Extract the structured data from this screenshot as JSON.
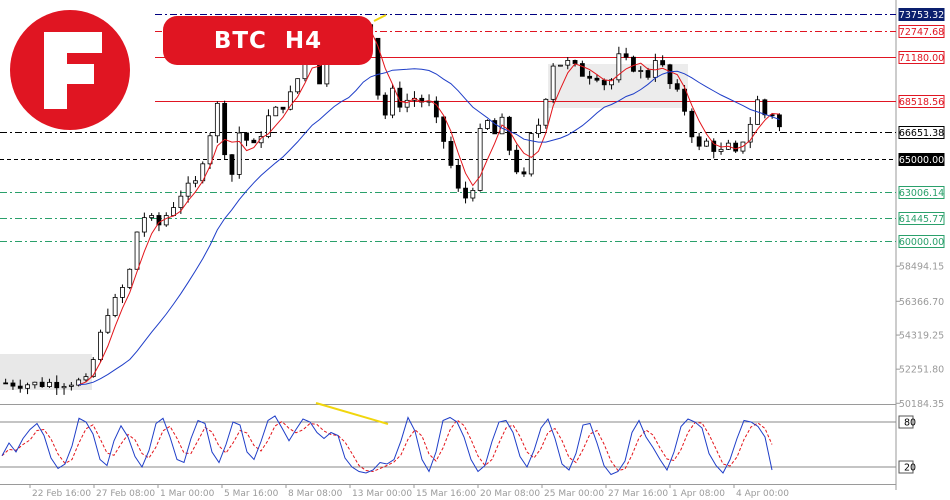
{
  "header": {
    "symbol": "BTC",
    "timeframe": "H4"
  },
  "colors": {
    "brand_red": "#e01522",
    "candle": "#000000",
    "ma_fast": "#e3151b",
    "ma_slow": "#1f3ec8",
    "resistance": "#e01522",
    "support": "#2aa06b",
    "stoch_main": "#1f3ec8",
    "stoch_signal": "#e3151b",
    "highlight": "#f1d60d"
  },
  "chart_data": [
    {
      "type": "candlestick",
      "title": "BTC H4",
      "x_tick_labels": [
        "22 Feb 16:00",
        "27 Feb 08:00",
        "1 Mar 00:00",
        "5 Mar 16:00",
        "8 Mar 08:00",
        "13 Mar 00:00",
        "15 Mar 16:00",
        "20 Mar 08:00",
        "25 Mar 00:00",
        "27 Mar 16:00",
        "1 Apr 08:00",
        "4 Apr 00:00"
      ],
      "y_range": [
        50140,
        74450
      ],
      "y_tick_labels": [
        58494.15,
        56366.7,
        54319.25,
        52251.8,
        50184.35
      ],
      "levels": [
        {
          "value": 73753.32,
          "label": "73753.32",
          "style": "dash-dot",
          "color": "#000080",
          "label_style": "navy"
        },
        {
          "value": 72747.68,
          "label": "72747.68",
          "style": "dash-dot",
          "color": "#e01522",
          "label_style": "red"
        },
        {
          "value": 71180.0,
          "label": "71180.00",
          "style": "solid",
          "color": "#e01522",
          "label_style": "red"
        },
        {
          "value": 68518.56,
          "label": "68518.56",
          "style": "solid",
          "color": "#e01522",
          "label_style": "red"
        },
        {
          "value": 66651.38,
          "label": "66651.38",
          "style": "dash-dot",
          "color": "#000000",
          "label_style": "plain"
        },
        {
          "value": 65000.0,
          "label": "65000.00",
          "style": "dashed",
          "color": "#000000",
          "label_style": "black"
        },
        {
          "value": 63006.14,
          "label": "63006.14",
          "style": "dash-dot",
          "color": "#2aa06b",
          "label_style": "green"
        },
        {
          "value": 61445.77,
          "label": "61445.77",
          "style": "dash-dot",
          "color": "#2aa06b",
          "label_style": "green"
        },
        {
          "value": 60000.0,
          "label": "60000.00",
          "style": "dash-dot",
          "color": "#2aa06b",
          "label_style": "green"
        }
      ],
      "price_path": [
        [
          0,
          51420
        ],
        [
          4,
          51350
        ],
        [
          9,
          51500
        ],
        [
          11,
          51460
        ],
        [
          12,
          52800
        ],
        [
          14,
          55800
        ],
        [
          15.5,
          56600
        ],
        [
          17,
          58200
        ],
        [
          18,
          60600
        ],
        [
          19,
          61500
        ],
        [
          21,
          61000
        ],
        [
          22.5,
          61900
        ],
        [
          24,
          62900
        ],
        [
          26,
          63500
        ],
        [
          27.5,
          65800
        ],
        [
          29,
          68200
        ],
        [
          30,
          65600
        ],
        [
          31,
          64100
        ],
        [
          32,
          66600
        ],
        [
          34,
          65700
        ],
        [
          36,
          67500
        ],
        [
          38,
          68300
        ],
        [
          39.5,
          69100
        ],
        [
          41,
          71400
        ],
        [
          42,
          71900
        ],
        [
          43,
          69800
        ],
        [
          45,
          71900
        ],
        [
          48,
          72900
        ],
        [
          49.5,
          73400
        ],
        [
          50.5,
          71800
        ],
        [
          51,
          69000
        ],
        [
          52,
          67700
        ],
        [
          53,
          69000
        ],
        [
          54,
          68400
        ],
        [
          56,
          68700
        ],
        [
          58,
          68300
        ],
        [
          60,
          66100
        ],
        [
          61.5,
          63800
        ],
        [
          62.5,
          62300
        ],
        [
          64,
          63400
        ],
        [
          65,
          66500
        ],
        [
          66,
          67200
        ],
        [
          67,
          66500
        ],
        [
          68,
          67200
        ],
        [
          69,
          65600
        ],
        [
          70,
          64400
        ],
        [
          71,
          63800
        ],
        [
          72,
          66300
        ],
        [
          73,
          67100
        ],
        [
          74,
          68900
        ],
        [
          75,
          70800
        ],
        [
          77,
          70800
        ],
        [
          79,
          70200
        ],
        [
          81,
          70100
        ],
        [
          82,
          69600
        ],
        [
          83,
          69800
        ],
        [
          84,
          71100
        ],
        [
          86,
          70600
        ],
        [
          87,
          70200
        ],
        [
          88,
          70100
        ],
        [
          89,
          71200
        ],
        [
          90,
          70500
        ],
        [
          91,
          69500
        ],
        [
          92,
          68900
        ],
        [
          93,
          68000
        ],
        [
          94,
          66600
        ],
        [
          95,
          65600
        ],
        [
          96,
          66000
        ],
        [
          97,
          65700
        ],
        [
          98,
          65400
        ],
        [
          99,
          65700
        ],
        [
          100,
          65200
        ],
        [
          101,
          66200
        ],
        [
          102,
          67200
        ],
        [
          103,
          68500
        ],
        [
          104,
          67700
        ],
        [
          105,
          67800
        ],
        [
          106,
          66900
        ]
      ],
      "series": [
        {
          "name": "",
          "role": "fast moving average",
          "color": "#e3151b"
        },
        {
          "name": "",
          "role": "slow moving average",
          "color": "#1f3ec8"
        }
      ]
    },
    {
      "type": "line",
      "role": "stochastic oscillator",
      "y_range": [
        0,
        100
      ],
      "reference_lines": [
        {
          "value": 80,
          "label": "80"
        },
        {
          "value": 20,
          "label": "20"
        }
      ],
      "series": [
        {
          "name": "",
          "role": "main",
          "color": "#1f3ec8",
          "values": [
            35,
            52,
            40,
            58,
            70,
            78,
            62,
            32,
            18,
            24,
            48,
            85,
            80,
            64,
            30,
            22,
            55,
            75,
            60,
            34,
            20,
            42,
            78,
            85,
            60,
            30,
            26,
            58,
            82,
            78,
            40,
            26,
            50,
            80,
            76,
            40,
            30,
            54,
            82,
            88,
            72,
            55,
            70,
            84,
            80,
            66,
            58,
            66,
            62,
            32,
            20,
            14,
            12,
            16,
            26,
            24,
            30,
            55,
            86,
            68,
            30,
            14,
            40,
            82,
            86,
            80,
            60,
            30,
            14,
            22,
            54,
            80,
            82,
            66,
            34,
            20,
            42,
            72,
            84,
            58,
            24,
            16,
            38,
            76,
            78,
            52,
            22,
            10,
            14,
            28,
            66,
            82,
            60,
            46,
            30,
            16,
            40,
            74,
            84,
            80,
            72,
            38,
            22,
            12,
            30,
            58,
            82,
            80,
            74,
            60,
            16
          ]
        },
        {
          "name": "",
          "role": "signal",
          "color": "#e3151b"
        }
      ]
    }
  ]
}
